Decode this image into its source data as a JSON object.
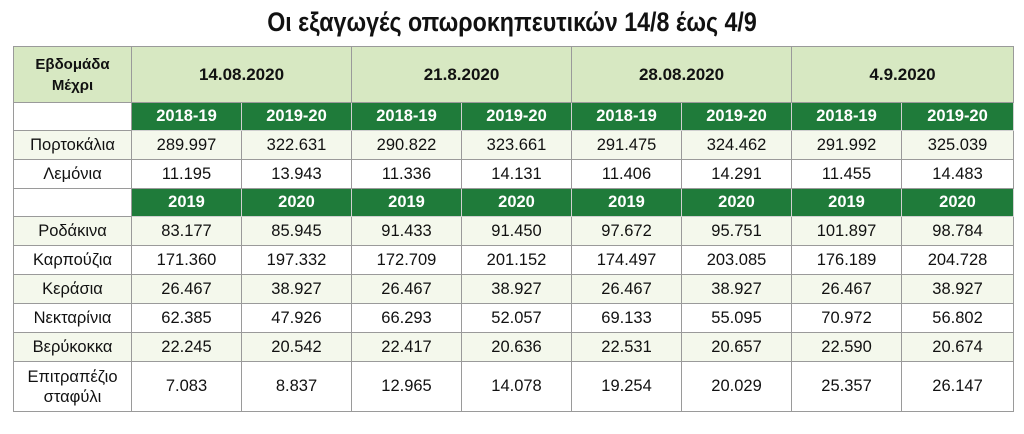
{
  "title": "Οι εξαγωγές οπωροκηπευτικών 14/8 έως 4/9",
  "header": {
    "week_label": "Εβδομάδα Μέχρι",
    "dates": [
      "14.08.2020",
      "21.8.2020",
      "28.08.2020",
      "4.9.2020"
    ]
  },
  "season_headers": [
    "2018-19",
    "2019-20",
    "2018-19",
    "2019-20",
    "2018-19",
    "2019-20",
    "2018-19",
    "2019-20"
  ],
  "year_headers": [
    "2019",
    "2020",
    "2019",
    "2020",
    "2019",
    "2020",
    "2019",
    "2020"
  ],
  "rows": [
    {
      "label": "Πορτοκάλια",
      "values": [
        "289.997",
        "322.631",
        "290.822",
        "323.661",
        "291.475",
        "324.462",
        "291.992",
        "325.039"
      ]
    },
    {
      "label": "Λεμόνια",
      "values": [
        "11.195",
        "13.943",
        "11.336",
        "14.131",
        "11.406",
        "14.291",
        "11.455",
        "14.483"
      ]
    },
    {
      "label": "Ροδάκινα",
      "values": [
        "83.177",
        "85.945",
        "91.433",
        "91.450",
        "97.672",
        "95.751",
        "101.897",
        "98.784"
      ]
    },
    {
      "label": "Καρπούζια",
      "values": [
        "171.360",
        "197.332",
        "172.709",
        "201.152",
        "174.497",
        "203.085",
        "176.189",
        "204.728"
      ]
    },
    {
      "label": "Κεράσια",
      "values": [
        "26.467",
        "38.927",
        "26.467",
        "38.927",
        "26.467",
        "38.927",
        "26.467",
        "38.927"
      ]
    },
    {
      "label": "Νεκταρίνια",
      "values": [
        "62.385",
        "47.926",
        "66.293",
        "52.057",
        "69.133",
        "55.095",
        "70.972",
        "56.802"
      ]
    },
    {
      "label": "Βερύκοκκα",
      "values": [
        "22.245",
        "20.542",
        "22.417",
        "20.636",
        "22.531",
        "20.657",
        "22.590",
        "20.674"
      ]
    },
    {
      "label": "Επιτραπέζιο σταφύλι",
      "values": [
        "7.083",
        "8.837",
        "12.965",
        "14.078",
        "19.254",
        "20.029",
        "25.357",
        "26.147"
      ]
    }
  ],
  "colors": {
    "header_bg": "#d7e8c2",
    "year_bg": "#1f7b3a",
    "row_alt_bg": "#f4f8ec"
  }
}
